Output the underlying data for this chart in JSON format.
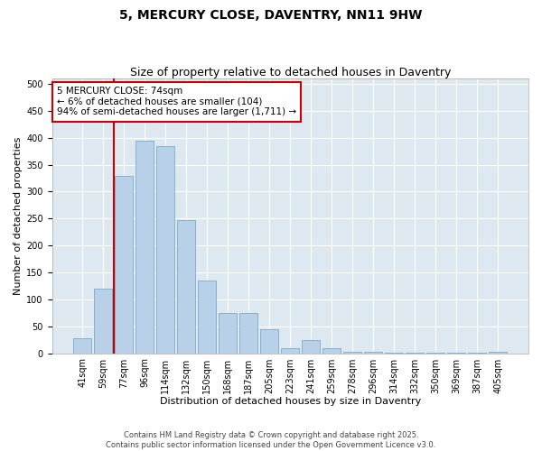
{
  "title": "5, MERCURY CLOSE, DAVENTRY, NN11 9HW",
  "subtitle": "Size of property relative to detached houses in Daventry",
  "xlabel": "Distribution of detached houses by size in Daventry",
  "ylabel": "Number of detached properties",
  "categories": [
    "41sqm",
    "59sqm",
    "77sqm",
    "96sqm",
    "114sqm",
    "132sqm",
    "150sqm",
    "168sqm",
    "187sqm",
    "205sqm",
    "223sqm",
    "241sqm",
    "259sqm",
    "278sqm",
    "296sqm",
    "314sqm",
    "332sqm",
    "350sqm",
    "369sqm",
    "387sqm",
    "405sqm"
  ],
  "values": [
    28,
    120,
    330,
    395,
    385,
    247,
    135,
    75,
    75,
    45,
    10,
    25,
    10,
    2,
    2,
    1,
    1,
    1,
    1,
    1,
    2
  ],
  "bar_color": "#b8d0e8",
  "bar_edge_color": "#7aaac8",
  "vline_color": "#cc0000",
  "vline_x": 1.5,
  "annotation_text": "5 MERCURY CLOSE: 74sqm\n← 6% of detached houses are smaller (104)\n94% of semi-detached houses are larger (1,711) →",
  "annotation_box_color": "#ffffff",
  "annotation_box_edge_color": "#cc0000",
  "ylim": [
    0,
    510
  ],
  "yticks": [
    0,
    50,
    100,
    150,
    200,
    250,
    300,
    350,
    400,
    450,
    500
  ],
  "plot_bg_color": "#dde8f0",
  "footer_line1": "Contains HM Land Registry data © Crown copyright and database right 2025.",
  "footer_line2": "Contains public sector information licensed under the Open Government Licence v3.0.",
  "title_fontsize": 10,
  "subtitle_fontsize": 9,
  "tick_fontsize": 7,
  "xlabel_fontsize": 8,
  "ylabel_fontsize": 8,
  "annotation_fontsize": 7.5,
  "footer_fontsize": 6
}
